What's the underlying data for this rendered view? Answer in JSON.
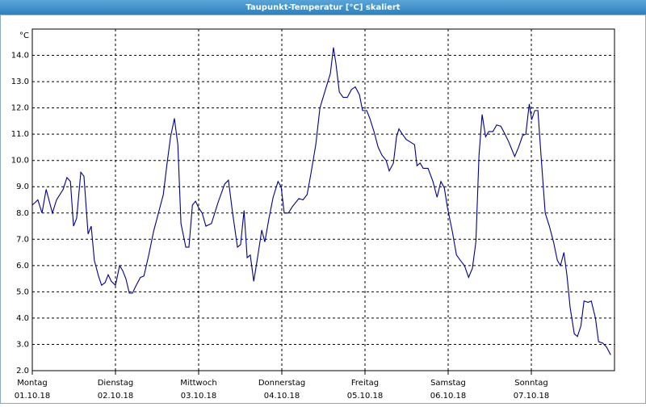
{
  "chart_data": {
    "type": "line",
    "title": "Taupunkt-Temperatur [°C] skaliert",
    "y_unit": "°C",
    "color": "#00008b",
    "grid": true,
    "xlim": [
      0,
      168
    ],
    "ylim": [
      2,
      15
    ],
    "yticks": [
      {
        "value": 2,
        "label": "2.0"
      },
      {
        "value": 3,
        "label": "3.0"
      },
      {
        "value": 4,
        "label": "4.0"
      },
      {
        "value": 5,
        "label": "5.0"
      },
      {
        "value": 6,
        "label": "6.0"
      },
      {
        "value": 7,
        "label": "7.0"
      },
      {
        "value": 8,
        "label": "8.0"
      },
      {
        "value": 9,
        "label": "9.0"
      },
      {
        "value": 10,
        "label": "10.0"
      },
      {
        "value": 11,
        "label": "11.0"
      },
      {
        "value": 12,
        "label": "12.0"
      },
      {
        "value": 13,
        "label": "13.0"
      },
      {
        "value": 14,
        "label": "14.0"
      }
    ],
    "xticks": [
      {
        "value": 0,
        "label": "Montag",
        "date": "01.10.18"
      },
      {
        "value": 24,
        "label": "Dienstag",
        "date": "02.10.18"
      },
      {
        "value": 48,
        "label": "Mittwoch",
        "date": "03.10.18"
      },
      {
        "value": 72,
        "label": "Donnerstag",
        "date": "04.10.18"
      },
      {
        "value": 96,
        "label": "Freitag",
        "date": "05.10.18"
      },
      {
        "value": 120,
        "label": "Samstag",
        "date": "06.10.18"
      },
      {
        "value": 144,
        "label": "Sonntag",
        "date": "07.10.18"
      }
    ],
    "x": [
      0,
      1.6,
      2.8,
      4.0,
      5.8,
      7.0,
      8.9,
      10.0,
      11.0,
      11.9,
      12.8,
      14.0,
      14.9,
      16.1,
      17.0,
      17.9,
      19.1,
      20.0,
      21.0,
      21.9,
      22.8,
      24.0,
      25.2,
      26.1,
      27.0,
      28.0,
      28.9,
      29.8,
      31.2,
      32.2,
      33.6,
      35.0,
      36.4,
      37.8,
      38.9,
      39.9,
      41.0,
      42.0,
      42.9,
      44.3,
      45.2,
      46.2,
      47.1,
      48.0,
      49.0,
      50.1,
      51.7,
      53.6,
      55.5,
      56.6,
      57.8,
      59.2,
      60.1,
      61.1,
      62.0,
      62.9,
      63.9,
      65.0,
      66.2,
      67.1,
      68.3,
      69.5,
      70.9,
      71.8,
      72.7,
      73.9,
      75.1,
      76.9,
      78.1,
      79.3,
      80.4,
      81.8,
      83.0,
      84.6,
      86.0,
      86.9,
      87.6,
      88.6,
      89.7,
      90.9,
      92.1,
      93.2,
      94.4,
      95.3,
      96.5,
      97.4,
      98.6,
      99.8,
      100.9,
      102.1,
      103.0,
      104.2,
      105.1,
      105.8,
      106.8,
      107.9,
      109.1,
      110.3,
      111.0,
      111.9,
      112.8,
      114.2,
      115.6,
      116.8,
      117.9,
      118.9,
      119.8,
      121.2,
      122.4,
      123.5,
      124.7,
      125.9,
      127.0,
      128.0,
      128.9,
      129.8,
      130.8,
      131.7,
      132.9,
      134.0,
      135.2,
      136.4,
      137.5,
      139.2,
      140.3,
      141.5,
      142.4,
      143.4,
      144.1,
      145.0,
      145.9,
      146.9,
      148.0,
      149.2,
      150.4,
      151.5,
      152.4,
      153.4,
      154.3,
      155.2,
      156.4,
      157.3,
      158.3,
      159.2,
      160.4,
      161.3,
      162.5,
      163.4,
      164.6,
      165.7,
      166.9
    ],
    "values": [
      8.3,
      8.5,
      8.0,
      8.9,
      8.0,
      8.5,
      8.9,
      9.35,
      9.2,
      7.5,
      7.8,
      9.55,
      9.4,
      7.2,
      7.5,
      6.2,
      5.6,
      5.25,
      5.35,
      5.65,
      5.4,
      5.25,
      6.0,
      5.8,
      5.5,
      4.95,
      4.95,
      5.2,
      5.55,
      5.6,
      6.4,
      7.3,
      8.0,
      8.7,
      9.9,
      10.9,
      11.6,
      10.6,
      7.6,
      6.7,
      6.7,
      8.3,
      8.45,
      8.2,
      8.0,
      7.5,
      7.6,
      8.4,
      9.1,
      9.25,
      8.0,
      6.7,
      6.8,
      8.1,
      6.3,
      6.4,
      5.4,
      6.3,
      7.35,
      6.9,
      7.8,
      8.6,
      9.2,
      9.0,
      8.0,
      8.0,
      8.25,
      8.55,
      8.5,
      8.7,
      9.5,
      10.6,
      12.0,
      12.7,
      13.3,
      14.3,
      13.7,
      12.6,
      12.4,
      12.4,
      12.7,
      12.8,
      12.5,
      11.9,
      11.9,
      11.6,
      11.1,
      10.5,
      10.2,
      10.0,
      9.6,
      9.9,
      10.9,
      11.2,
      11.0,
      10.8,
      10.7,
      10.6,
      9.8,
      9.9,
      9.7,
      9.7,
      9.2,
      8.6,
      9.2,
      8.95,
      8.2,
      7.3,
      6.4,
      6.2,
      6.0,
      5.55,
      5.9,
      6.9,
      10.2,
      11.75,
      10.9,
      11.1,
      11.1,
      11.35,
      11.3,
      11.0,
      10.7,
      10.15,
      10.5,
      10.95,
      11.0,
      12.15,
      11.55,
      11.9,
      11.9,
      10.0,
      8.0,
      7.5,
      6.9,
      6.2,
      6.0,
      6.5,
      5.6,
      4.4,
      3.4,
      3.3,
      3.7,
      4.65,
      4.6,
      4.65,
      4.0,
      3.1,
      3.05,
      2.9,
      2.6
    ]
  }
}
